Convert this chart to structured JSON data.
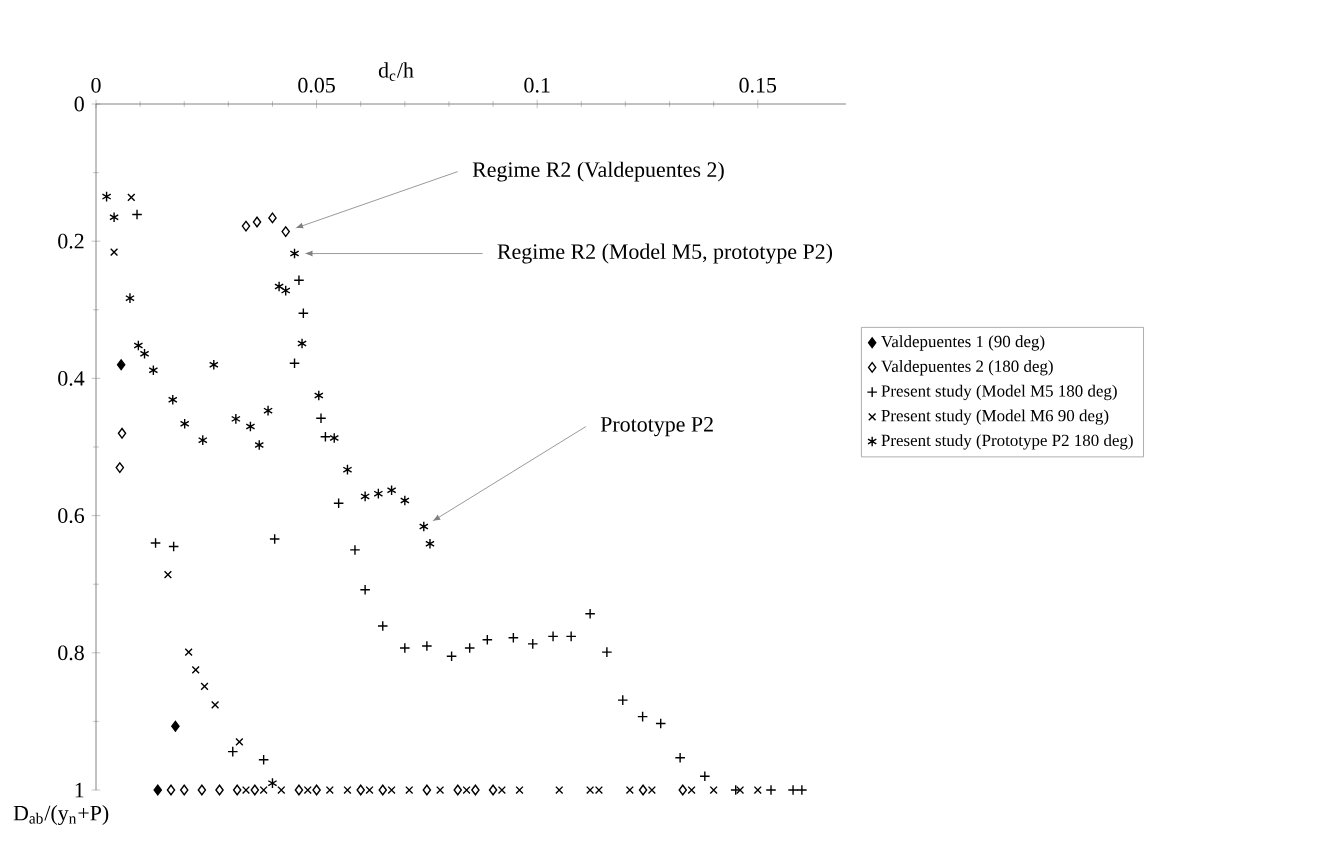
{
  "chart_data": {
    "type": "scatter",
    "xlabel": "d$_{c}$/h",
    "ylabel": "D$_{ab}$/(y$_{n}$+P)",
    "xlim": [
      0,
      0.17
    ],
    "xticks": [
      0,
      0.05,
      0.1,
      0.15
    ],
    "ylim": [
      1,
      0
    ],
    "yticks": [
      0,
      0.2,
      0.4,
      0.6,
      0.8,
      1
    ],
    "legend": "right",
    "grid": false,
    "series": [
      {
        "name": "Valdepuentes 1 (90 deg)",
        "color": "#000000",
        "marker": "diamond",
        "x": [
          0.0057,
          0.018,
          0.014
        ],
        "values": [
          0.38,
          0.907,
          1.0
        ]
      },
      {
        "name": "Valdepuentes 2 (180 deg)",
        "color": "#000000",
        "marker": "diamond",
        "x": [
          0.0059,
          0.0054,
          0.034,
          0.0365,
          0.04,
          0.043,
          0.017,
          0.02,
          0.024,
          0.028,
          0.032,
          0.036,
          0.046,
          0.05,
          0.06,
          0.065,
          0.075,
          0.082,
          0.086,
          0.09,
          0.124,
          0.133
        ],
        "values": [
          0.48,
          0.53,
          0.178,
          0.172,
          0.166,
          0.186,
          1,
          1,
          1,
          1,
          1,
          1,
          1,
          1,
          1,
          1,
          1,
          1,
          1,
          1,
          1,
          1
        ]
      },
      {
        "name": "Present study (Model M5 180 deg)",
        "color": "#000000",
        "marker": "cross",
        "x": [
          0.0093,
          0.0135,
          0.0176,
          0.031,
          0.038,
          0.0405,
          0.046,
          0.047,
          0.045,
          0.051,
          0.052,
          0.055,
          0.0587,
          0.061,
          0.065,
          0.07,
          0.075,
          0.0806,
          0.0847,
          0.0887,
          0.0946,
          0.099,
          0.1036,
          0.1077,
          0.112,
          0.1158,
          0.1194,
          0.1239,
          0.128,
          0.1324,
          0.138,
          0.145,
          0.153,
          0.158,
          0.16
        ],
        "values": [
          0.161,
          0.64,
          0.645,
          0.944,
          0.956,
          0.634,
          0.257,
          0.305,
          0.378,
          0.458,
          0.485,
          0.582,
          0.65,
          0.708,
          0.761,
          0.793,
          0.79,
          0.805,
          0.793,
          0.781,
          0.778,
          0.787,
          0.776,
          0.776,
          0.743,
          0.799,
          0.869,
          0.893,
          0.903,
          0.953,
          0.98,
          1,
          1,
          1,
          1
        ]
      },
      {
        "name": "Present study (Model M6 90 deg)",
        "color": "#000000",
        "marker": "cross",
        "x": [
          0.0041,
          0.008,
          0.0163,
          0.021,
          0.0226,
          0.0246,
          0.027,
          0.0325,
          0.034,
          0.038,
          0.042,
          0.048,
          0.053,
          0.057,
          0.062,
          0.067,
          0.071,
          0.078,
          0.084,
          0.092,
          0.096,
          0.105,
          0.112,
          0.114,
          0.121,
          0.126,
          0.135,
          0.14,
          0.146,
          0.15
        ],
        "values": [
          0.216,
          0.136,
          0.686,
          0.799,
          0.825,
          0.849,
          0.876,
          0.93,
          1,
          1,
          1,
          1,
          1,
          1,
          1,
          1,
          1,
          1,
          1,
          1,
          1,
          1,
          1,
          1,
          1,
          1,
          1,
          1,
          1,
          1
        ]
      },
      {
        "name": "Present study (Prototype P2 180 deg)",
        "color": "#000000",
        "marker": "cross",
        "x": [
          0.0024,
          0.0041,
          0.0077,
          0.0096,
          0.011,
          0.013,
          0.0174,
          0.0201,
          0.0242,
          0.0267,
          0.0317,
          0.035,
          0.037,
          0.039,
          0.0415,
          0.043,
          0.045,
          0.0467,
          0.0505,
          0.054,
          0.057,
          0.061,
          0.064,
          0.067,
          0.07,
          0.0743,
          0.0757,
          0.04
        ],
        "values": [
          0.135,
          0.165,
          0.283,
          0.352,
          0.364,
          0.388,
          0.431,
          0.466,
          0.49,
          0.38,
          0.459,
          0.47,
          0.497,
          0.447,
          0.266,
          0.272,
          0.218,
          0.349,
          0.425,
          0.487,
          0.533,
          0.572,
          0.568,
          0.563,
          0.578,
          0.616,
          0.641,
          0.99
        ]
      }
    ],
    "annotations": [
      {
        "text": "Regime R2 (Valdepuentes 2)",
        "x": 0.043,
        "y": 0.186
      },
      {
        "text": "Regime R2 (Model M5, prototype P2)",
        "x": 0.045,
        "y": 0.218
      },
      {
        "text": "Prototype P2",
        "x": 0.0743,
        "y": 0.616
      }
    ]
  }
}
